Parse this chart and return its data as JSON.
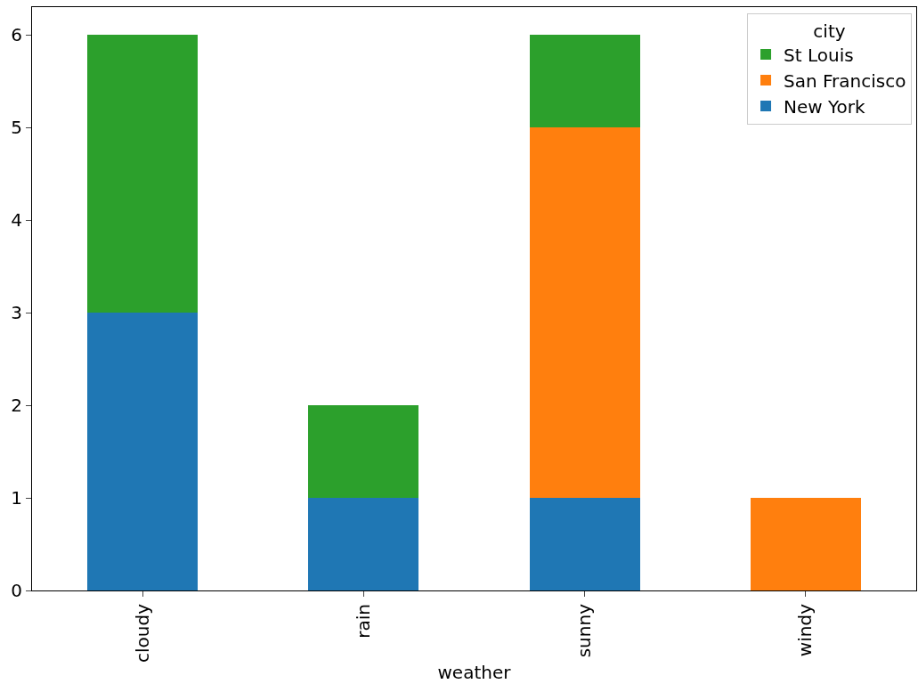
{
  "chart_data": {
    "type": "bar",
    "stacked": true,
    "xlabel": "weather",
    "legend_title": "city",
    "categories": [
      "cloudy",
      "rain",
      "sunny",
      "windy"
    ],
    "series": [
      {
        "name": "New York",
        "color": "#1f77b4",
        "values": [
          3,
          1,
          1,
          0
        ]
      },
      {
        "name": "San Francisco",
        "color": "#ff7f0e",
        "values": [
          0,
          0,
          4,
          1
        ]
      },
      {
        "name": "St Louis",
        "color": "#2ca02c",
        "values": [
          3,
          1,
          1,
          0
        ]
      }
    ],
    "ylim": [
      0,
      6.3
    ],
    "yticks": [
      0,
      1,
      2,
      3,
      4,
      5,
      6
    ],
    "grid": false,
    "legend": "top right"
  }
}
